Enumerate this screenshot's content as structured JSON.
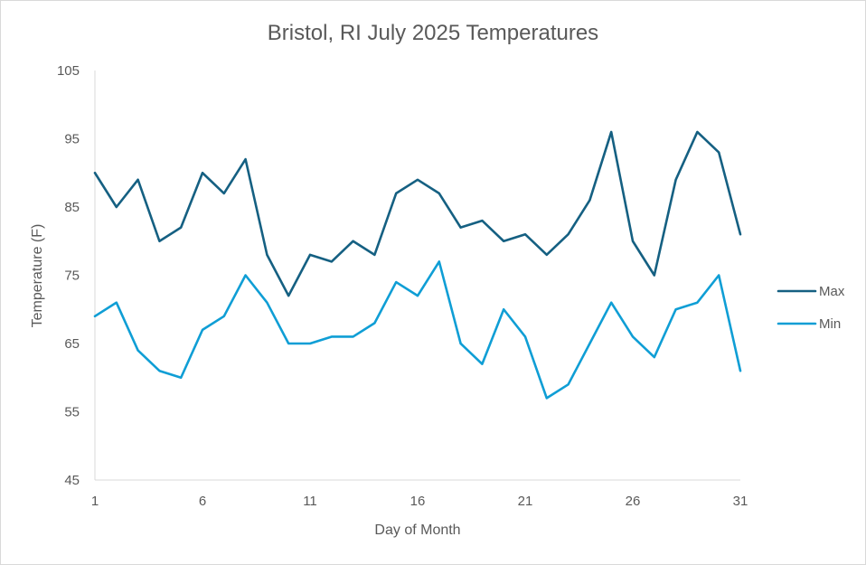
{
  "chart_data": {
    "type": "line",
    "title": "Bristol, RI July 2025 Temperatures",
    "xlabel": "Day of Month",
    "ylabel": "Temperature (F)",
    "ylim": [
      45,
      105
    ],
    "xlim": [
      1,
      31
    ],
    "yticks": [
      45,
      55,
      65,
      75,
      85,
      95,
      105
    ],
    "xticks": [
      1,
      6,
      11,
      16,
      21,
      26,
      31
    ],
    "legend_position": "right",
    "x": [
      1,
      2,
      3,
      4,
      5,
      6,
      7,
      8,
      9,
      10,
      11,
      12,
      13,
      14,
      15,
      16,
      17,
      18,
      19,
      20,
      21,
      22,
      23,
      24,
      25,
      26,
      27,
      28,
      29,
      30,
      31
    ],
    "series": [
      {
        "name": "Max",
        "color": "#156082",
        "values": [
          90,
          85,
          89,
          80,
          82,
          90,
          87,
          92,
          78,
          72,
          78,
          77,
          80,
          78,
          87,
          89,
          87,
          82,
          83,
          80,
          81,
          78,
          81,
          86,
          96,
          80,
          75,
          89,
          96,
          93,
          81
        ]
      },
      {
        "name": "Min",
        "color": "#0f9ed5",
        "values": [
          69,
          71,
          64,
          61,
          60,
          67,
          69,
          75,
          71,
          65,
          65,
          66,
          66,
          68,
          74,
          72,
          77,
          65,
          62,
          70,
          66,
          57,
          59,
          65,
          71,
          66,
          63,
          70,
          71,
          75,
          61
        ]
      }
    ]
  }
}
